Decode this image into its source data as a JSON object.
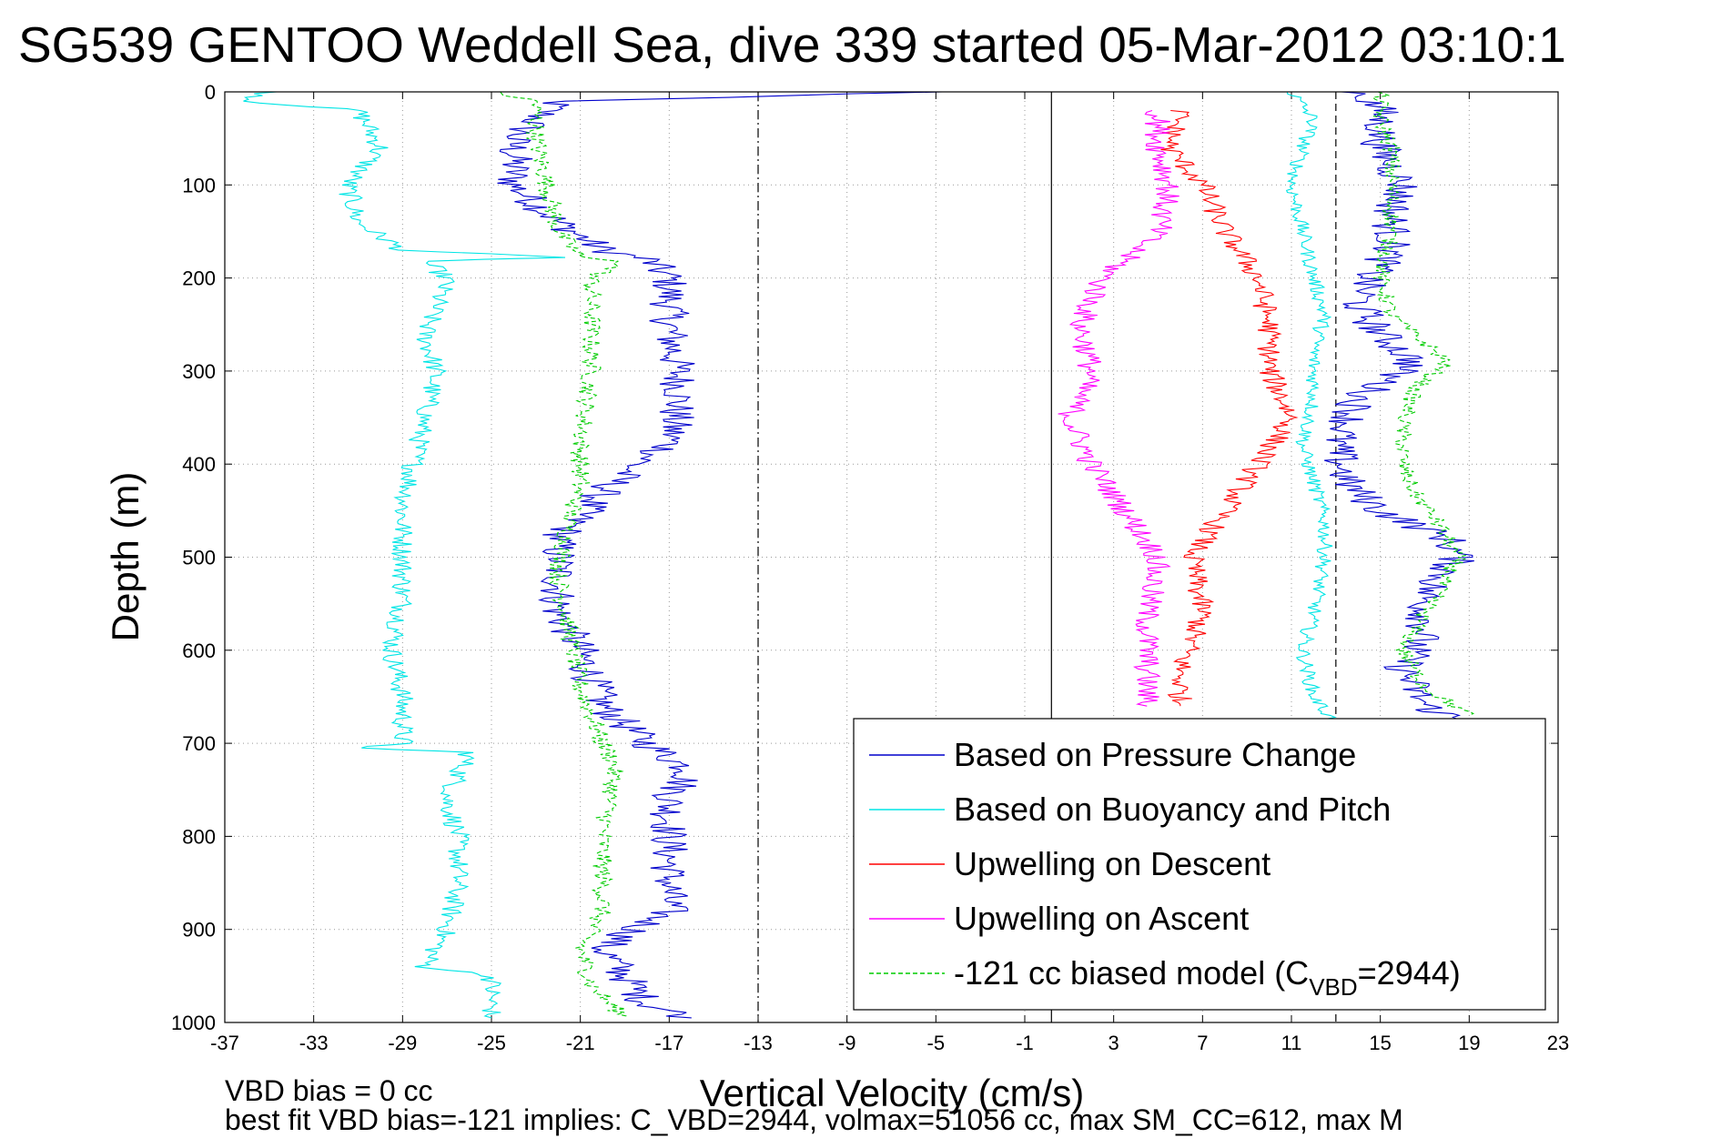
{
  "chart_data": {
    "type": "line",
    "title": "SG539 GENTOO Weddell Sea, dive 339 started 05-Mar-2012 03:10:1",
    "xlabel": "Vertical Velocity (cm/s)",
    "ylabel": "Depth (m)",
    "xlim": [
      -37,
      23
    ],
    "ylim": [
      1000,
      0
    ],
    "y_reversed": true,
    "grid": true,
    "x_ticks": [
      "-37",
      "-33",
      "-29",
      "-25",
      "-21",
      "-17",
      "-13",
      "-9",
      "-5",
      "-1",
      "3",
      "7",
      "11",
      "15",
      "19",
      "23"
    ],
    "y_ticks": [
      "0",
      "100",
      "200",
      "300",
      "400",
      "500",
      "600",
      "700",
      "800",
      "900",
      "1000"
    ],
    "reference_lines": [
      {
        "x": -13,
        "style": "dash-dot"
      },
      {
        "x": 0.2,
        "style": "solid"
      },
      {
        "x": 13,
        "style": "dashed"
      }
    ],
    "legend_position": "bottom-right",
    "legend": [
      {
        "name": "Based on Pressure Change",
        "color": "#0000cc",
        "dash": "solid"
      },
      {
        "name": "Based on Buoyancy and Pitch",
        "color": "#00e5e5",
        "dash": "solid"
      },
      {
        "name": "Upwelling on Descent",
        "color": "#ff0000",
        "dash": "solid"
      },
      {
        "name": "Upwelling on Ascent",
        "color": "#ff00ff",
        "dash": "solid"
      },
      {
        "name_prefix": "-121 cc biased model (C",
        "name_sub": "VBD",
        "name_suffix": "=2944)",
        "color": "#00cc00",
        "dash": "dashed"
      }
    ],
    "series": [
      {
        "id": "pressure_descent",
        "color": "#0000cc",
        "noise": 0.9,
        "points": [
          [
            0,
            -5
          ],
          [
            10,
            -22
          ],
          [
            50,
            -24
          ],
          [
            100,
            -24
          ],
          [
            140,
            -22
          ],
          [
            170,
            -20
          ],
          [
            180,
            -18
          ],
          [
            200,
            -17
          ],
          [
            250,
            -17
          ],
          [
            320,
            -16.5
          ],
          [
            380,
            -17
          ],
          [
            400,
            -18.5
          ],
          [
            430,
            -20
          ],
          [
            480,
            -22
          ],
          [
            520,
            -22
          ],
          [
            560,
            -22
          ],
          [
            600,
            -21
          ],
          [
            660,
            -20
          ],
          [
            700,
            -18
          ],
          [
            730,
            -16
          ],
          [
            760,
            -17
          ],
          [
            820,
            -17
          ],
          [
            880,
            -17
          ],
          [
            920,
            -20
          ],
          [
            950,
            -19
          ],
          [
            980,
            -18
          ],
          [
            995,
            -16
          ]
        ]
      },
      {
        "id": "buoyancy_descent",
        "color": "#00e5e5",
        "noise": 0.5,
        "points": [
          [
            0,
            -35
          ],
          [
            10,
            -36
          ],
          [
            20,
            -31
          ],
          [
            60,
            -30
          ],
          [
            100,
            -31.5
          ],
          [
            140,
            -31
          ],
          [
            170,
            -29
          ],
          [
            178,
            -22
          ],
          [
            182,
            -28
          ],
          [
            200,
            -27
          ],
          [
            260,
            -28
          ],
          [
            300,
            -27.5
          ],
          [
            350,
            -28
          ],
          [
            400,
            -28.5
          ],
          [
            450,
            -29
          ],
          [
            500,
            -29
          ],
          [
            550,
            -29
          ],
          [
            600,
            -29.5
          ],
          [
            650,
            -29
          ],
          [
            700,
            -29
          ],
          [
            705,
            -31
          ],
          [
            710,
            -26
          ],
          [
            760,
            -27
          ],
          [
            800,
            -26.5
          ],
          [
            850,
            -26.5
          ],
          [
            900,
            -27
          ],
          [
            940,
            -28
          ],
          [
            950,
            -25
          ],
          [
            970,
            -25
          ],
          [
            995,
            -25
          ]
        ]
      },
      {
        "id": "model_descent",
        "color": "#00cc00",
        "noise": 0.45,
        "dashed": true,
        "points": [
          [
            0,
            -25
          ],
          [
            10,
            -23
          ],
          [
            50,
            -23
          ],
          [
            100,
            -22.5
          ],
          [
            150,
            -22
          ],
          [
            178,
            -21
          ],
          [
            182,
            -19
          ],
          [
            200,
            -20.5
          ],
          [
            300,
            -20.5
          ],
          [
            380,
            -21
          ],
          [
            420,
            -21
          ],
          [
            460,
            -21.5
          ],
          [
            520,
            -22
          ],
          [
            580,
            -21.5
          ],
          [
            640,
            -21
          ],
          [
            700,
            -20
          ],
          [
            720,
            -19.5
          ],
          [
            740,
            -19.5
          ],
          [
            800,
            -20
          ],
          [
            880,
            -20
          ],
          [
            920,
            -21
          ],
          [
            960,
            -20.5
          ],
          [
            995,
            -19
          ]
        ]
      },
      {
        "id": "pressure_ascent",
        "color": "#0000cc",
        "noise": 0.9,
        "points": [
          [
            0,
            14
          ],
          [
            20,
            15
          ],
          [
            60,
            15
          ],
          [
            100,
            16
          ],
          [
            130,
            15.5
          ],
          [
            170,
            15.5
          ],
          [
            200,
            14.5
          ],
          [
            230,
            14
          ],
          [
            260,
            15
          ],
          [
            290,
            16.5
          ],
          [
            330,
            14
          ],
          [
            380,
            13
          ],
          [
            420,
            13.5
          ],
          [
            450,
            15
          ],
          [
            480,
            18
          ],
          [
            500,
            18.5
          ],
          [
            540,
            17
          ],
          [
            580,
            17
          ],
          [
            620,
            16
          ],
          [
            660,
            17
          ],
          [
            680,
            19
          ]
        ]
      },
      {
        "id": "buoyancy_ascent",
        "color": "#00e5e5",
        "noise": 0.35,
        "points": [
          [
            0,
            11
          ],
          [
            30,
            12
          ],
          [
            60,
            11.5
          ],
          [
            100,
            11
          ],
          [
            150,
            11.5
          ],
          [
            200,
            12
          ],
          [
            240,
            12.5
          ],
          [
            280,
            12
          ],
          [
            330,
            12
          ],
          [
            380,
            11.5
          ],
          [
            420,
            12
          ],
          [
            460,
            12.5
          ],
          [
            500,
            12.5
          ],
          [
            560,
            12
          ],
          [
            600,
            11.5
          ],
          [
            650,
            12
          ],
          [
            680,
            13
          ]
        ]
      },
      {
        "id": "model_ascent",
        "color": "#00cc00",
        "noise": 0.4,
        "dashed": true,
        "points": [
          [
            0,
            15
          ],
          [
            30,
            15
          ],
          [
            60,
            15.5
          ],
          [
            100,
            15.5
          ],
          [
            150,
            15.5
          ],
          [
            200,
            15
          ],
          [
            240,
            15.5
          ],
          [
            270,
            17
          ],
          [
            290,
            18
          ],
          [
            320,
            16.5
          ],
          [
            360,
            16
          ],
          [
            400,
            16
          ],
          [
            430,
            16.5
          ],
          [
            460,
            17.5
          ],
          [
            500,
            18.5
          ],
          [
            540,
            17.5
          ],
          [
            580,
            16.5
          ],
          [
            600,
            16
          ],
          [
            640,
            17
          ],
          [
            670,
            19
          ]
        ]
      },
      {
        "id": "upwelling_descent",
        "color": "#ff0000",
        "noise": 0.55,
        "points": [
          [
            20,
            6
          ],
          [
            60,
            5.5
          ],
          [
            100,
            7
          ],
          [
            150,
            8
          ],
          [
            200,
            9.5
          ],
          [
            250,
            10
          ],
          [
            300,
            10
          ],
          [
            350,
            11
          ],
          [
            400,
            9.5
          ],
          [
            450,
            8
          ],
          [
            500,
            6.5
          ],
          [
            560,
            7
          ],
          [
            620,
            6
          ],
          [
            660,
            6
          ]
        ]
      },
      {
        "id": "upwelling_ascent",
        "color": "#ff00ff",
        "noise": 0.6,
        "points": [
          [
            20,
            5
          ],
          [
            60,
            5
          ],
          [
            100,
            5.5
          ],
          [
            150,
            5
          ],
          [
            200,
            2.5
          ],
          [
            250,
            1.5
          ],
          [
            300,
            2
          ],
          [
            350,
            1
          ],
          [
            400,
            2
          ],
          [
            450,
            3.5
          ],
          [
            500,
            5
          ],
          [
            560,
            4.5
          ],
          [
            620,
            4.5
          ],
          [
            660,
            4.5
          ]
        ]
      }
    ],
    "annotations": [
      "VBD bias = 0 cc",
      "best fit VBD bias=-121 implies: C_VBD=2944, volmax=51056 cc, max SM_CC=612, max M"
    ]
  }
}
